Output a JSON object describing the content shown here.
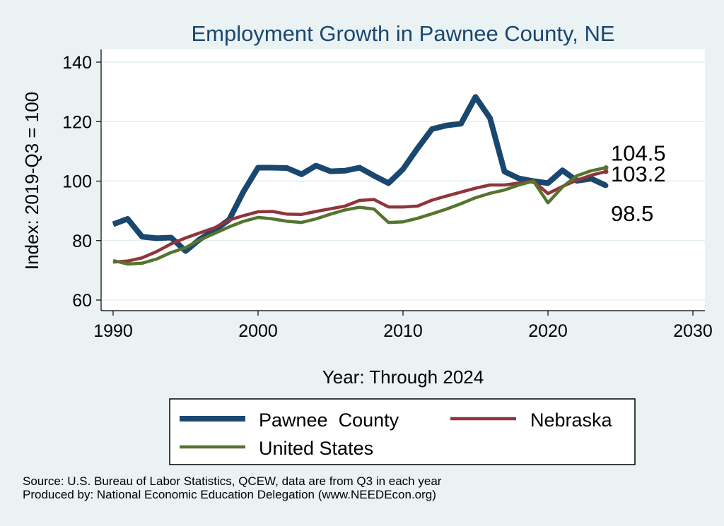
{
  "chart_data": {
    "type": "line",
    "title": "Employment Growth in Pawnee County, NE",
    "xlabel": "Year: Through 2024",
    "ylabel": "Index: 2019-Q3 = 100",
    "xlim": [
      1990,
      2030
    ],
    "ylim": [
      60,
      140
    ],
    "x_ticks": [
      1990,
      2000,
      2010,
      2020,
      2030
    ],
    "y_ticks": [
      60,
      80,
      100,
      120,
      140
    ],
    "grid": true,
    "x": [
      1990,
      1991,
      1992,
      1993,
      1994,
      1995,
      1996,
      1997,
      1998,
      1999,
      2000,
      2001,
      2002,
      2003,
      2004,
      2005,
      2006,
      2007,
      2008,
      2009,
      2010,
      2011,
      2012,
      2013,
      2014,
      2015,
      2016,
      2017,
      2018,
      2019,
      2020,
      2021,
      2022,
      2023,
      2024
    ],
    "series": [
      {
        "name": "Pawnee  County",
        "color": "#1a476f",
        "values": [
          85.5,
          87.3,
          81.3,
          80.8,
          81.0,
          76.5,
          80.5,
          83.5,
          87.0,
          96.5,
          104.5,
          104.5,
          104.4,
          102.3,
          105.2,
          103.3,
          103.5,
          104.5,
          101.8,
          99.3,
          104.0,
          111.0,
          117.5,
          118.7,
          119.3,
          128.3,
          121.2,
          103.2,
          100.9,
          100.0,
          99.3,
          103.6,
          100.1,
          100.8,
          98.5
        ],
        "end_label": "98.5"
      },
      {
        "name": "Nebraska",
        "color": "#90353b",
        "values": [
          72.8,
          73.1,
          74.2,
          76.3,
          78.9,
          80.9,
          82.6,
          84.3,
          86.9,
          88.4,
          89.7,
          89.8,
          88.9,
          88.8,
          89.8,
          90.7,
          91.6,
          93.5,
          93.8,
          91.3,
          91.3,
          91.6,
          93.6,
          95.0,
          96.3,
          97.6,
          98.7,
          98.7,
          99.3,
          100.0,
          95.8,
          98.2,
          100.3,
          102.0,
          103.2
        ],
        "end_label": "103.2"
      },
      {
        "name": "United States",
        "color": "#55752f",
        "values": [
          73.3,
          72.1,
          72.4,
          73.8,
          76.0,
          77.6,
          80.3,
          82.4,
          84.6,
          86.5,
          87.8,
          87.3,
          86.5,
          86.1,
          87.3,
          88.9,
          90.3,
          91.2,
          90.6,
          86.1,
          86.3,
          87.5,
          89.0,
          90.6,
          92.4,
          94.4,
          95.9,
          97.0,
          98.7,
          100.0,
          92.7,
          98.0,
          101.8,
          103.5,
          104.5
        ],
        "end_label": "104.5"
      }
    ],
    "legend_position": "bottom"
  },
  "footer": {
    "source": "Source: U.S. Bureau of Labor Statistics, QCEW, data are from Q3 in each year",
    "produced_by": "Produced by: National Economic Education Delegation (www.NEEDEcon.org)"
  }
}
